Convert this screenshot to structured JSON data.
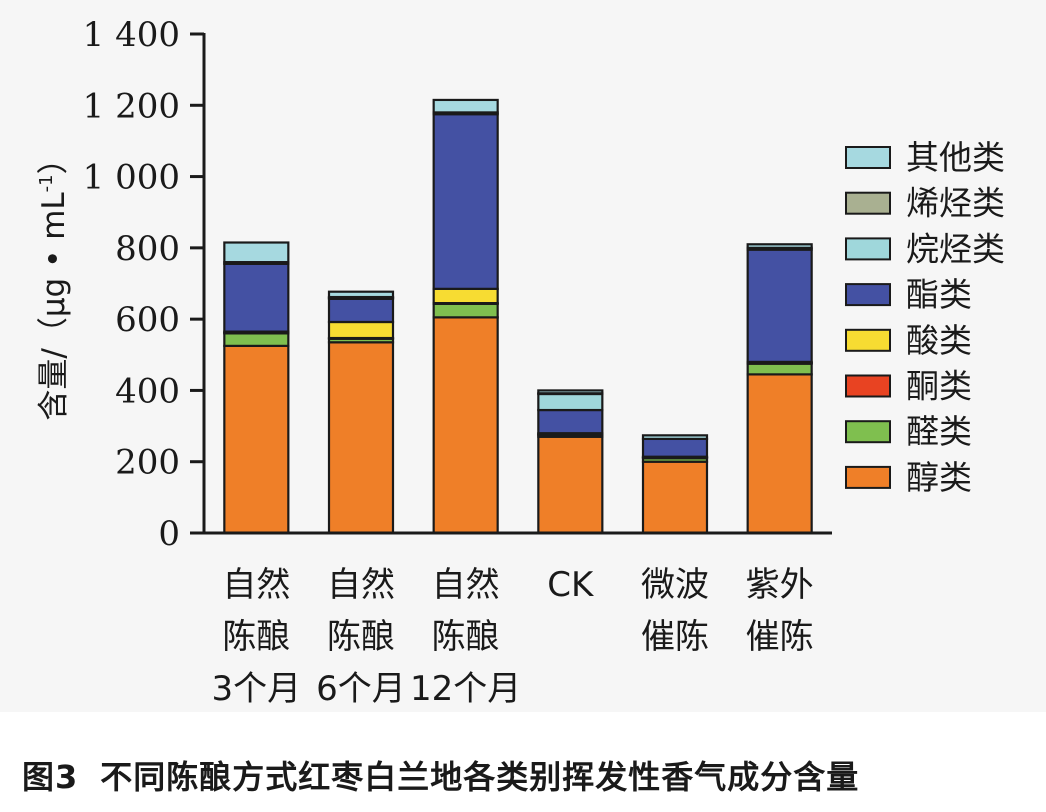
{
  "figure": {
    "label": "图3",
    "caption": "不同陈酿方式红枣白兰地各类别挥发性香气成分含量"
  },
  "chart_data": {
    "type": "bar",
    "stacked": true,
    "ylabel": "含量/（μg • mL",
    "ylabel_sup": "-1",
    "ylabel_close": "）",
    "ylim": [
      0,
      1400
    ],
    "yticks": [
      0,
      200,
      400,
      600,
      800,
      1000,
      1200,
      1400
    ],
    "ytick_labels": [
      "0",
      "200",
      "400",
      "600",
      "800",
      "1 000",
      "1 200",
      "1 400"
    ],
    "categories": [
      [
        "自然",
        "陈酿",
        "3个月"
      ],
      [
        "自然",
        "陈酿",
        "6个月"
      ],
      [
        "自然",
        "陈酿",
        "12个月"
      ],
      [
        "CK"
      ],
      [
        "微波",
        "催陈"
      ],
      [
        "紫外",
        "催陈"
      ]
    ],
    "series": [
      {
        "name": "醇类",
        "color": "#ef7f28",
        "values": [
          525,
          535,
          605,
          270,
          200,
          445
        ]
      },
      {
        "name": "醛类",
        "color": "#7fbf4f",
        "values": [
          35,
          10,
          38,
          5,
          10,
          30
        ]
      },
      {
        "name": "酮类",
        "color": "#e84322",
        "values": [
          2,
          2,
          2,
          2,
          2,
          2
        ]
      },
      {
        "name": "酸类",
        "color": "#f7dc32",
        "values": [
          3,
          45,
          40,
          3,
          2,
          3
        ]
      },
      {
        "name": "酯类",
        "color": "#4451a3",
        "values": [
          190,
          65,
          490,
          65,
          50,
          315
        ]
      },
      {
        "name": "烷烃类",
        "color": "#9fd7db",
        "values": [
          5,
          3,
          5,
          45,
          0,
          5
        ]
      },
      {
        "name": "烯烃类",
        "color": "#a9b091",
        "values": [
          0,
          2,
          0,
          2,
          0,
          0
        ]
      },
      {
        "name": "其他类",
        "color": "#a6d9e0",
        "values": [
          55,
          15,
          35,
          8,
          10,
          10
        ]
      }
    ],
    "legend": {
      "position": "right",
      "order": [
        "其他类",
        "烯烃类",
        "烷烃类",
        "酯类",
        "酸类",
        "酮类",
        "醛类",
        "醇类"
      ]
    }
  }
}
